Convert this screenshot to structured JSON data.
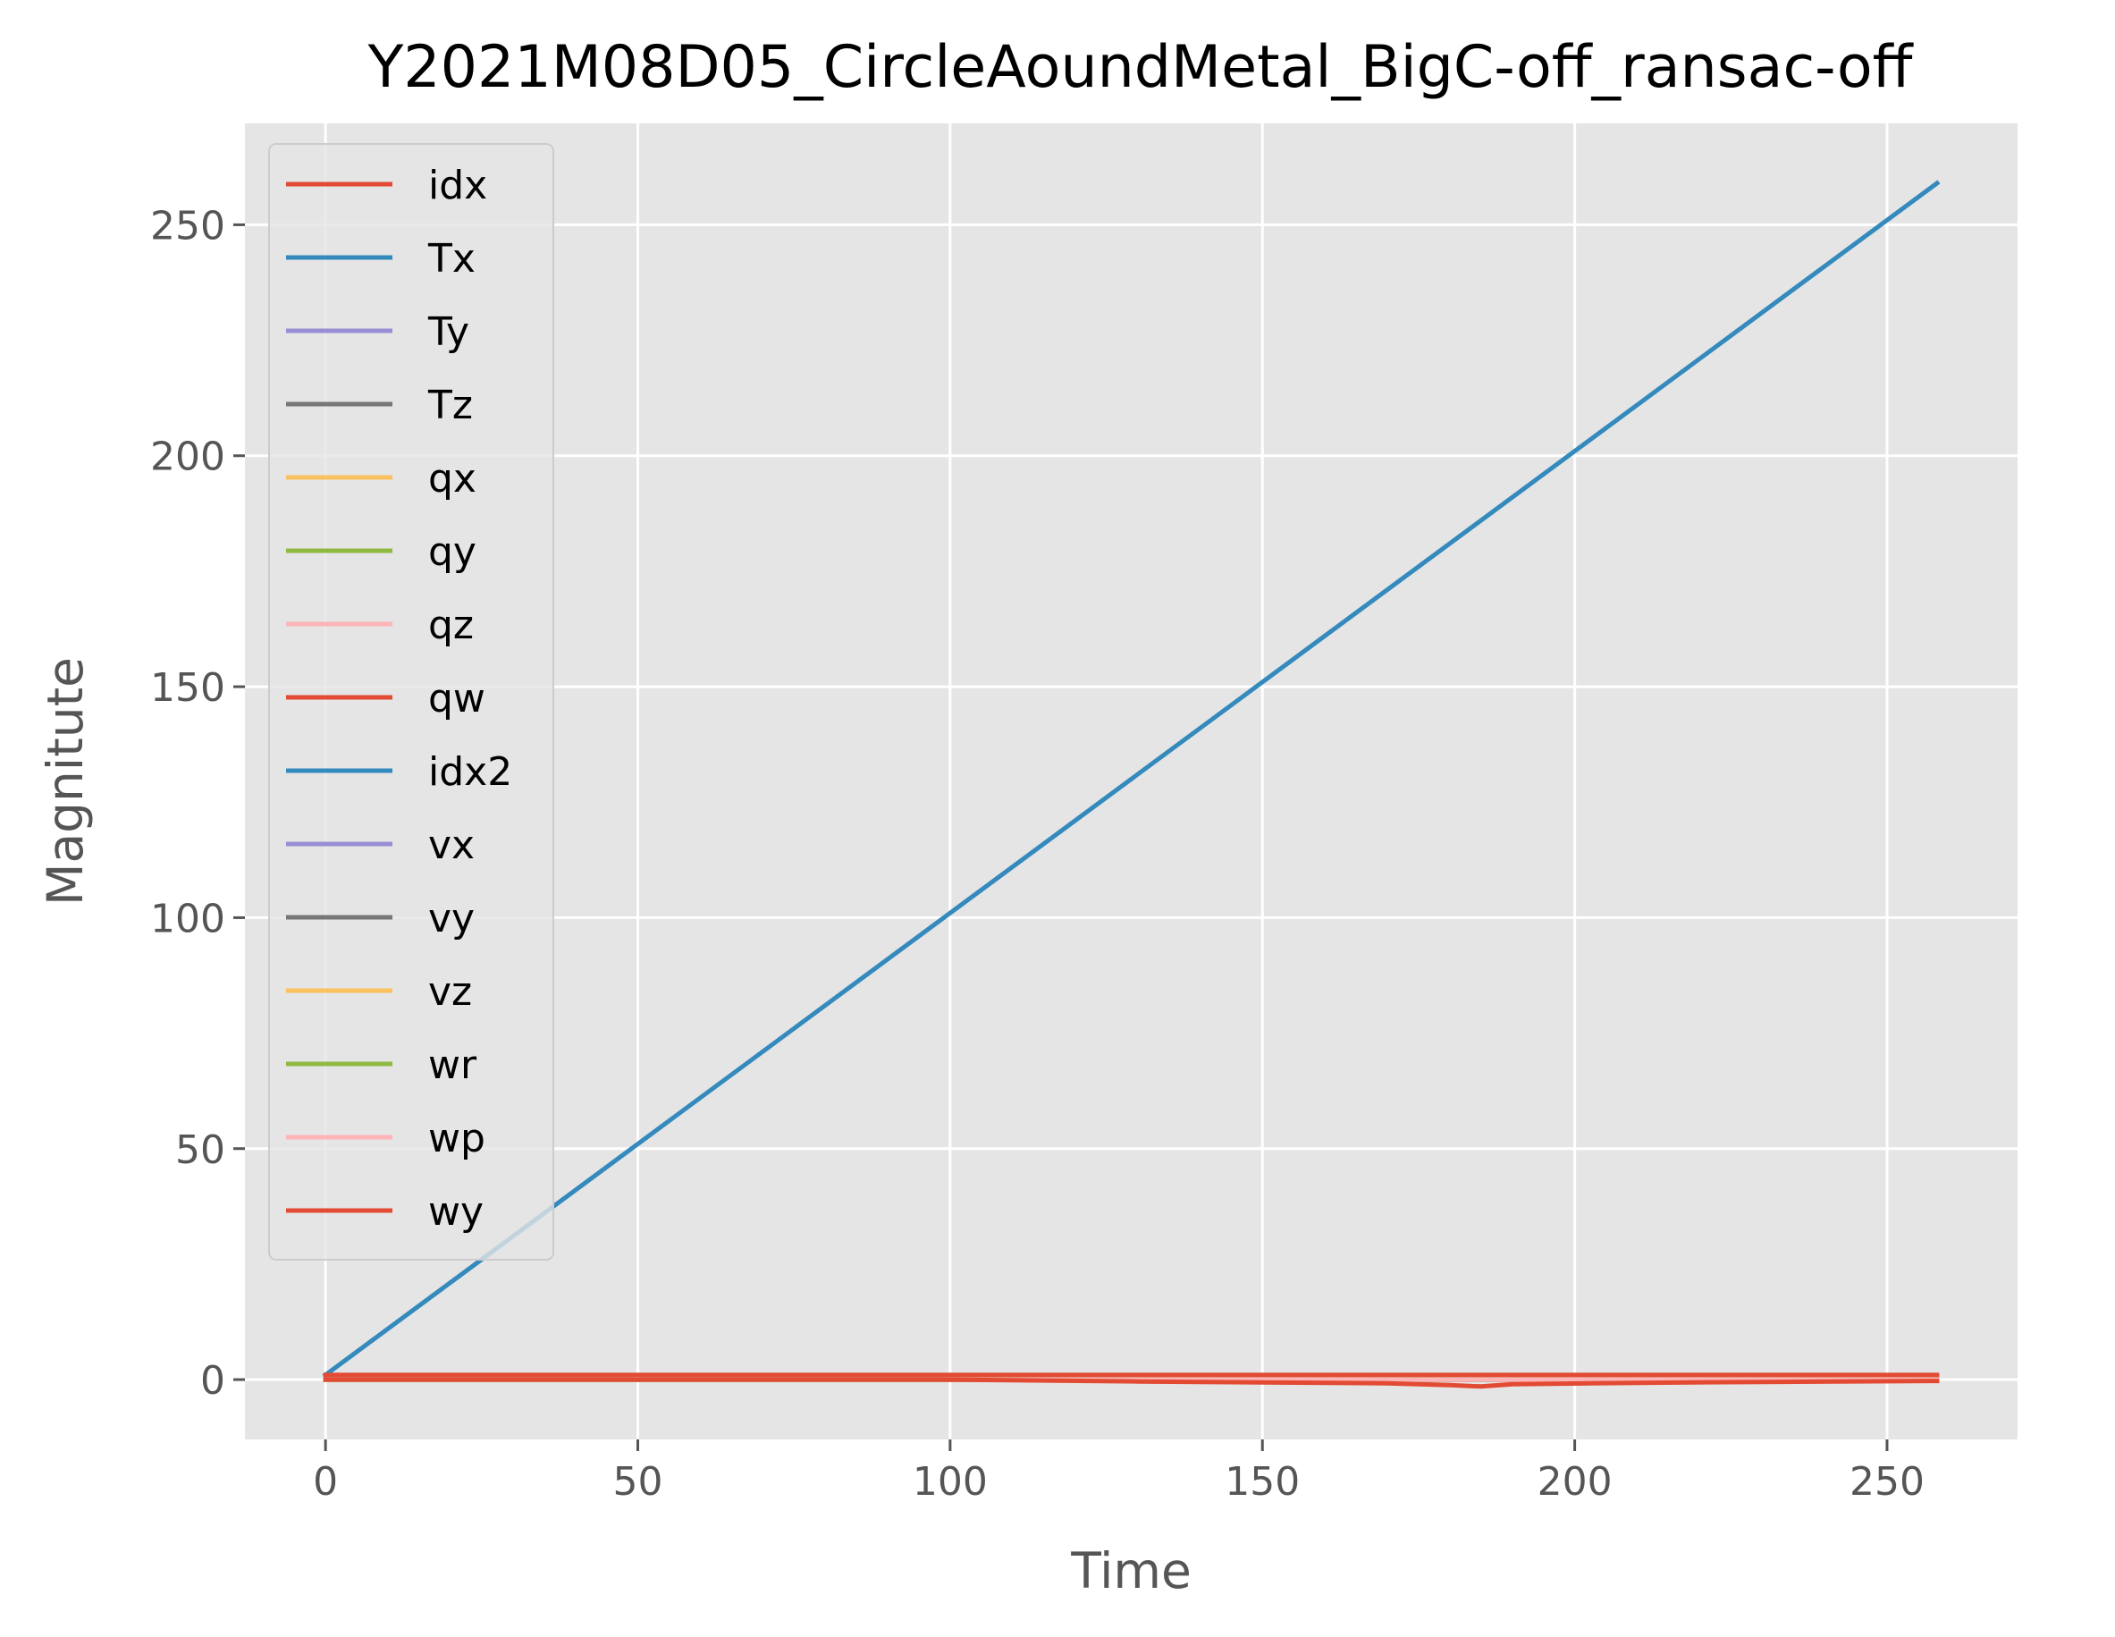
{
  "chart_data": {
    "type": "line",
    "title": "Y2021M08D05_CircleAoundMetal_BigC-off_ransac-off",
    "xlabel": "Time",
    "ylabel": "Magnitute",
    "xlim": [
      -12.9,
      270.9
    ],
    "ylim": [
      -12.95,
      271.95
    ],
    "xticks": [
      0,
      50,
      100,
      150,
      200,
      250
    ],
    "yticks": [
      0,
      50,
      100,
      150,
      200,
      250
    ],
    "grid": true,
    "legend_position": "upper-left",
    "colors": {
      "background": "#ffffff",
      "plot_background": "#e5e5e5",
      "grid": "#ffffff",
      "tick_color": "#555555"
    },
    "series": [
      {
        "name": "idx",
        "color": "#E24A33",
        "x": [
          0,
          258
        ],
        "y": [
          0,
          0
        ]
      },
      {
        "name": "Tx",
        "color": "#348ABD",
        "x": [
          0,
          258
        ],
        "y": [
          1,
          259
        ]
      },
      {
        "name": "Ty",
        "color": "#988ED5",
        "x": [
          0,
          258
        ],
        "y": [
          0,
          0
        ]
      },
      {
        "name": "Tz",
        "color": "#777777",
        "x": [
          0,
          258
        ],
        "y": [
          0,
          0
        ]
      },
      {
        "name": "qx",
        "color": "#FBC15E",
        "x": [
          0,
          258
        ],
        "y": [
          0,
          0
        ]
      },
      {
        "name": "qy",
        "color": "#8EBA42",
        "x": [
          0,
          258
        ],
        "y": [
          0,
          0
        ]
      },
      {
        "name": "qz",
        "color": "#FFB5B8",
        "x": [
          0,
          258
        ],
        "y": [
          0,
          0
        ]
      },
      {
        "name": "qw",
        "color": "#E24A33",
        "x": [
          0,
          258
        ],
        "y": [
          1,
          1
        ]
      },
      {
        "name": "idx2",
        "color": "#348ABD",
        "x": [
          0,
          258
        ],
        "y": [
          0,
          0
        ]
      },
      {
        "name": "vx",
        "color": "#988ED5",
        "x": [
          0,
          258
        ],
        "y": [
          0,
          0
        ]
      },
      {
        "name": "vy",
        "color": "#777777",
        "x": [
          0,
          258
        ],
        "y": [
          0,
          0
        ]
      },
      {
        "name": "vz",
        "color": "#FBC15E",
        "x": [
          0,
          258
        ],
        "y": [
          0,
          0
        ]
      },
      {
        "name": "wr",
        "color": "#8EBA42",
        "x": [
          0,
          258
        ],
        "y": [
          0,
          0
        ]
      },
      {
        "name": "wp",
        "color": "#FFB5B8",
        "x": [
          0,
          258
        ],
        "y": [
          0,
          0
        ]
      },
      {
        "name": "wy",
        "color": "#E24A33",
        "x": [
          0,
          50,
          100,
          130,
          150,
          170,
          180,
          185,
          190,
          210,
          230,
          258
        ],
        "y": [
          0,
          0,
          0,
          -0.4,
          -0.6,
          -0.8,
          -1.2,
          -1.5,
          -1.0,
          -0.7,
          -0.5,
          -0.3
        ]
      }
    ]
  }
}
